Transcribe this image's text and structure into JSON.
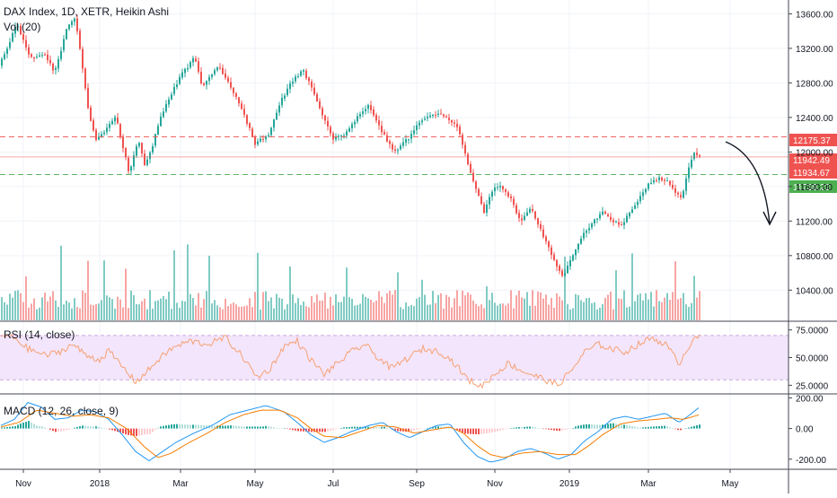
{
  "chart_data": {
    "type": "candlestick",
    "price_pane": {
      "title": "DAX Index, 1D, XETR, Heikin Ashi",
      "volume_label": "Vol (20)",
      "y_ticks": [
        10400,
        10800,
        11200,
        11600,
        12000,
        12400,
        12800,
        13200,
        13600
      ],
      "y_tick_labels": [
        "10400.00",
        "10800.00",
        "11200.00",
        "11600.00",
        "12000.00",
        "12400.00",
        "12800.00",
        "13200.00",
        "13600.00"
      ],
      "ylim": [
        10050,
        13760
      ],
      "anchors": [
        [
          0,
          13000
        ],
        [
          20,
          13480
        ],
        [
          35,
          13080
        ],
        [
          50,
          13150
        ],
        [
          62,
          12920
        ],
        [
          75,
          13420
        ],
        [
          85,
          13560
        ],
        [
          100,
          12450
        ],
        [
          108,
          12150
        ],
        [
          118,
          12250
        ],
        [
          130,
          12400
        ],
        [
          138,
          12050
        ],
        [
          145,
          11750
        ],
        [
          155,
          12150
        ],
        [
          162,
          11850
        ],
        [
          170,
          12050
        ],
        [
          180,
          12400
        ],
        [
          195,
          12750
        ],
        [
          205,
          12920
        ],
        [
          218,
          13100
        ],
        [
          226,
          12750
        ],
        [
          236,
          12900
        ],
        [
          245,
          13000
        ],
        [
          255,
          12800
        ],
        [
          270,
          12500
        ],
        [
          285,
          12100
        ],
        [
          300,
          12200
        ],
        [
          312,
          12550
        ],
        [
          325,
          12800
        ],
        [
          338,
          12950
        ],
        [
          350,
          12700
        ],
        [
          360,
          12420
        ],
        [
          372,
          12150
        ],
        [
          385,
          12200
        ],
        [
          400,
          12420
        ],
        [
          412,
          12550
        ],
        [
          425,
          12250
        ],
        [
          440,
          12000
        ],
        [
          455,
          12150
        ],
        [
          470,
          12380
        ],
        [
          490,
          12450
        ],
        [
          510,
          12300
        ],
        [
          518,
          12000
        ],
        [
          528,
          11650
        ],
        [
          540,
          11300
        ],
        [
          548,
          11550
        ],
        [
          558,
          11600
        ],
        [
          570,
          11450
        ],
        [
          580,
          11200
        ],
        [
          592,
          11350
        ],
        [
          605,
          11050
        ],
        [
          618,
          10750
        ],
        [
          628,
          10550
        ],
        [
          638,
          10780
        ],
        [
          650,
          11050
        ],
        [
          662,
          11200
        ],
        [
          672,
          11300
        ],
        [
          682,
          11200
        ],
        [
          694,
          11150
        ],
        [
          705,
          11350
        ],
        [
          715,
          11500
        ],
        [
          725,
          11650
        ],
        [
          735,
          11700
        ],
        [
          745,
          11650
        ],
        [
          755,
          11500
        ],
        [
          760,
          11450
        ],
        [
          766,
          11750
        ],
        [
          773,
          12000
        ],
        [
          778,
          11950
        ]
      ],
      "last_price": 11942.49,
      "horizontal_levels": [
        {
          "value": 12175.37,
          "label": "12175.37",
          "color": "#ef5350",
          "style": "dashed"
        },
        {
          "value": 11942.49,
          "label": "11942.49",
          "color": "#ef5350",
          "style": "solid"
        },
        {
          "value": 11934.67,
          "label": "11934.67",
          "color": "#ef5350",
          "style": "none"
        },
        {
          "value": 11739.22,
          "label": "11739.22",
          "color": "#4caf50",
          "style": "dashed"
        }
      ],
      "annotation": "curved-arrow-down"
    },
    "rsi_pane": {
      "label": "RSI (14, close)",
      "y_ticks": [
        25,
        50,
        75
      ],
      "y_tick_labels": [
        "25.0000",
        "50.0000",
        "75.0000"
      ],
      "band": [
        30,
        70
      ],
      "ylim": [
        18,
        82
      ],
      "anchors": [
        [
          0,
          70
        ],
        [
          15,
          68
        ],
        [
          30,
          58
        ],
        [
          50,
          52
        ],
        [
          65,
          55
        ],
        [
          80,
          62
        ],
        [
          95,
          52
        ],
        [
          110,
          48
        ],
        [
          120,
          56
        ],
        [
          135,
          42
        ],
        [
          150,
          28
        ],
        [
          160,
          35
        ],
        [
          175,
          48
        ],
        [
          190,
          58
        ],
        [
          210,
          65
        ],
        [
          230,
          62
        ],
        [
          250,
          68
        ],
        [
          270,
          50
        ],
        [
          285,
          32
        ],
        [
          300,
          40
        ],
        [
          315,
          60
        ],
        [
          330,
          65
        ],
        [
          345,
          48
        ],
        [
          360,
          35
        ],
        [
          375,
          45
        ],
        [
          390,
          55
        ],
        [
          405,
          62
        ],
        [
          420,
          50
        ],
        [
          435,
          40
        ],
        [
          450,
          48
        ],
        [
          470,
          58
        ],
        [
          490,
          55
        ],
        [
          505,
          45
        ],
        [
          520,
          30
        ],
        [
          535,
          24
        ],
        [
          550,
          35
        ],
        [
          565,
          45
        ],
        [
          580,
          38
        ],
        [
          600,
          32
        ],
        [
          620,
          25
        ],
        [
          635,
          38
        ],
        [
          650,
          55
        ],
        [
          665,
          62
        ],
        [
          680,
          58
        ],
        [
          695,
          55
        ],
        [
          710,
          62
        ],
        [
          725,
          68
        ],
        [
          740,
          62
        ],
        [
          755,
          45
        ],
        [
          765,
          58
        ],
        [
          772,
          70
        ],
        [
          778,
          68
        ]
      ]
    },
    "macd_pane": {
      "label": "MACD (12, 26, close, 9)",
      "y_ticks": [
        -200,
        0,
        200
      ],
      "y_tick_labels": [
        "-200.00",
        "0.00",
        "200.00"
      ],
      "ylim": [
        -260,
        220
      ],
      "macd_anchors": [
        [
          0,
          20
        ],
        [
          15,
          60
        ],
        [
          30,
          170
        ],
        [
          45,
          140
        ],
        [
          60,
          60
        ],
        [
          75,
          70
        ],
        [
          90,
          120
        ],
        [
          105,
          110
        ],
        [
          120,
          60
        ],
        [
          135,
          -40
        ],
        [
          150,
          -150
        ],
        [
          165,
          -210
        ],
        [
          180,
          -150
        ],
        [
          195,
          -90
        ],
        [
          215,
          -30
        ],
        [
          235,
          20
        ],
        [
          255,
          90
        ],
        [
          275,
          120
        ],
        [
          295,
          150
        ],
        [
          315,
          110
        ],
        [
          330,
          40
        ],
        [
          345,
          -40
        ],
        [
          360,
          -90
        ],
        [
          375,
          -60
        ],
        [
          390,
          -20
        ],
        [
          410,
          20
        ],
        [
          425,
          40
        ],
        [
          440,
          -20
        ],
        [
          455,
          -60
        ],
        [
          470,
          -20
        ],
        [
          485,
          20
        ],
        [
          500,
          30
        ],
        [
          515,
          -90
        ],
        [
          530,
          -180
        ],
        [
          545,
          -220
        ],
        [
          560,
          -200
        ],
        [
          575,
          -150
        ],
        [
          590,
          -130
        ],
        [
          605,
          -160
        ],
        [
          620,
          -200
        ],
        [
          635,
          -170
        ],
        [
          650,
          -80
        ],
        [
          665,
          -20
        ],
        [
          680,
          60
        ],
        [
          695,
          80
        ],
        [
          710,
          60
        ],
        [
          725,
          80
        ],
        [
          740,
          100
        ],
        [
          755,
          40
        ],
        [
          765,
          80
        ],
        [
          778,
          140
        ]
      ],
      "signal_anchors": [
        [
          0,
          10
        ],
        [
          20,
          40
        ],
        [
          40,
          120
        ],
        [
          60,
          100
        ],
        [
          80,
          80
        ],
        [
          100,
          90
        ],
        [
          120,
          70
        ],
        [
          140,
          0
        ],
        [
          160,
          -120
        ],
        [
          175,
          -190
        ],
        [
          190,
          -160
        ],
        [
          210,
          -90
        ],
        [
          230,
          -30
        ],
        [
          250,
          40
        ],
        [
          270,
          90
        ],
        [
          290,
          120
        ],
        [
          310,
          120
        ],
        [
          330,
          70
        ],
        [
          345,
          0
        ],
        [
          360,
          -50
        ],
        [
          380,
          -60
        ],
        [
          400,
          -20
        ],
        [
          420,
          20
        ],
        [
          440,
          10
        ],
        [
          460,
          -30
        ],
        [
          480,
          -10
        ],
        [
          500,
          10
        ],
        [
          515,
          -30
        ],
        [
          530,
          -110
        ],
        [
          545,
          -170
        ],
        [
          560,
          -190
        ],
        [
          580,
          -160
        ],
        [
          600,
          -150
        ],
        [
          620,
          -170
        ],
        [
          640,
          -170
        ],
        [
          655,
          -110
        ],
        [
          670,
          -40
        ],
        [
          690,
          30
        ],
        [
          710,
          50
        ],
        [
          730,
          60
        ],
        [
          745,
          70
        ],
        [
          760,
          60
        ],
        [
          778,
          90
        ]
      ]
    },
    "x_ticks": [
      {
        "label": "Nov",
        "idx": 25
      },
      {
        "label": "2018",
        "idx": 110
      },
      {
        "label": "Mar",
        "idx": 200
      },
      {
        "label": "May",
        "idx": 283
      },
      {
        "label": "Jul",
        "idx": 370
      },
      {
        "label": "Sep",
        "idx": 463
      },
      {
        "label": "Nov",
        "idx": 550
      },
      {
        "label": "2019",
        "idx": 633
      },
      {
        "label": "Mar",
        "idx": 721
      },
      {
        "label": "May",
        "idx": 812
      }
    ],
    "colors": {
      "up": "#26a69a",
      "down": "#ef5350",
      "vol_up": "#80cbc4",
      "vol_down": "#f7a5a4",
      "rsi_line": "#f6a174",
      "rsi_band": "#f3e5fb",
      "rsi_band_border": "#c9a7e0",
      "macd_line": "#2196f3",
      "signal_line": "#f57c00",
      "hist_pos": "#26a69a",
      "hist_pos_light": "#b2dfdb",
      "hist_neg": "#ef5350",
      "hist_neg_light": "#ffcdd2"
    }
  }
}
